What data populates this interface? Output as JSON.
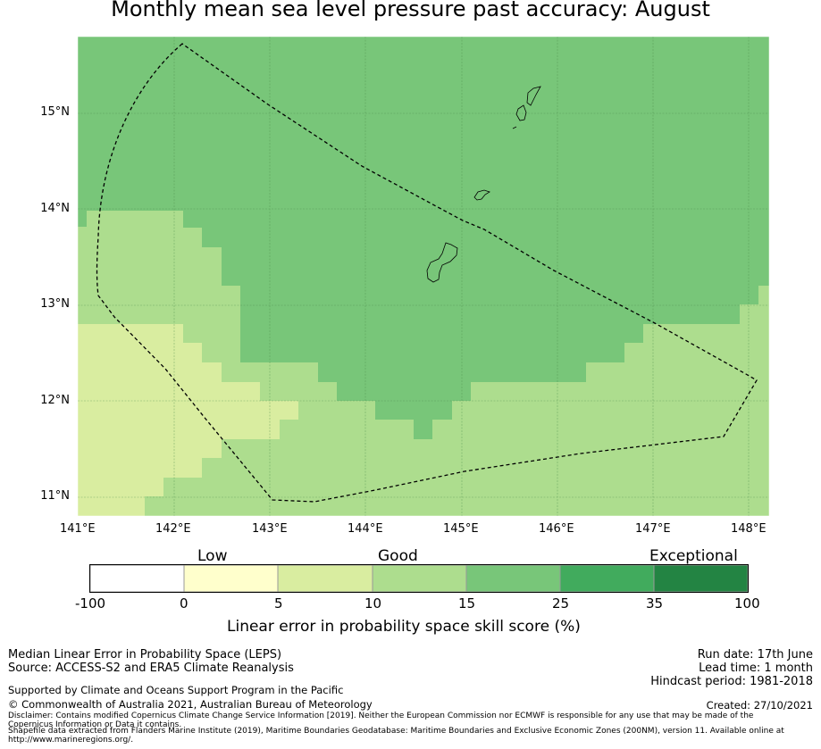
{
  "title": "Monthly mean sea level pressure past accuracy: August",
  "map": {
    "lon_ticks": [
      "141°E",
      "142°E",
      "143°E",
      "144°E",
      "145°E",
      "146°E",
      "147°E",
      "148°E"
    ],
    "lat_ticks": [
      "15°N",
      "14°N",
      "13°N",
      "12°N",
      "11°N"
    ],
    "lon_range": [
      141.0,
      148.2
    ],
    "lat_range": [
      10.8,
      15.8
    ],
    "boundary_line": "dashed",
    "grid": true
  },
  "colorbar": {
    "categories": [
      "Low",
      "Good",
      "Exceptional"
    ],
    "ticks": [
      "-100",
      "0",
      "5",
      "10",
      "15",
      "25",
      "35",
      "100"
    ],
    "colors": [
      "#ffffff",
      "#ffffcc",
      "#d9eda0",
      "#addd8e",
      "#78c679",
      "#41ab5d",
      "#238443"
    ],
    "label": "Linear error in probability space skill score (%)"
  },
  "footer": {
    "left_line1": "Median Linear Error in Probability Space (LEPS)",
    "left_line2": "Source: ACCESS-S2 and ERA5 Climate Reanalysis",
    "supported": "Supported by Climate and Oceans Support Program in the Pacific",
    "copyright": "© Commonwealth of Australia 2021, Australian Bureau of Meteorology",
    "disclaimer": "Disclaimer: Contains modified Copernicus Climate Change Service Information [2019]. Neither the European Commission nor ECMWF is responsible for any use that may be made of the Copernicus Information or Data it contains.",
    "shapefile": "Shapefile data extracted from Flanders Marine Institute (2019), Maritime Boundaries Geodatabase: Maritime Boundaries and Exclusive Economic Zones (200NM), version 11. Available online at http://www.marineregions.org/.",
    "run_date": "Run date: 17th June",
    "lead_time": "Lead time: 1 month",
    "hindcast": "Hindcast period: 1981-2018",
    "created": "Created: 27/10/2021"
  }
}
